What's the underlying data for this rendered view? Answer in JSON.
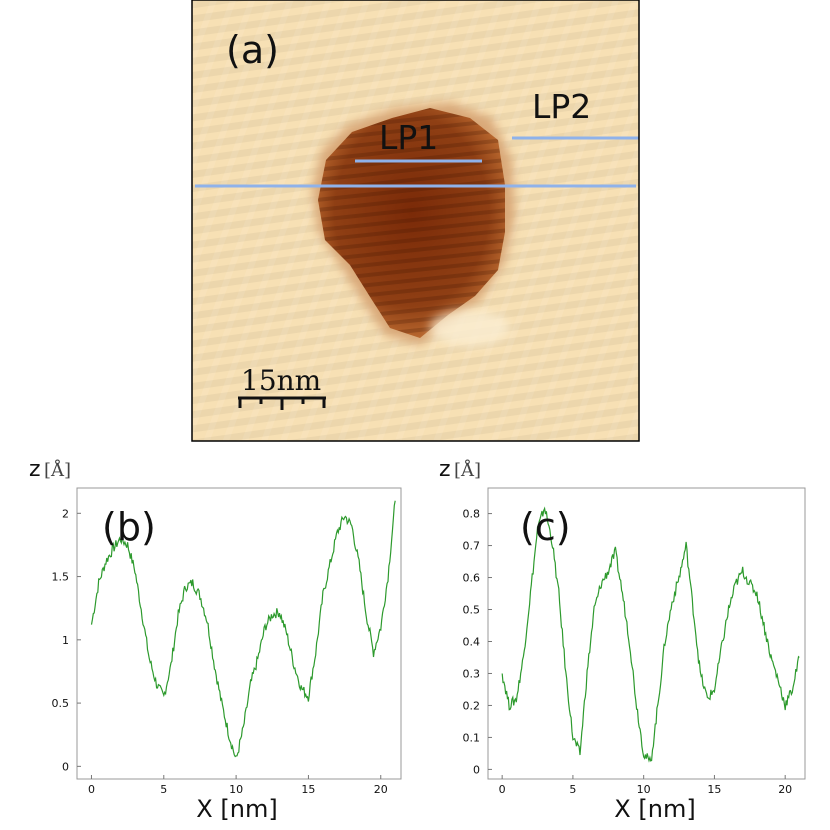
{
  "panel_a": {
    "label": "(a)",
    "line_labels": [
      "LP1",
      "LP2"
    ],
    "scale_bar_label": "15nm",
    "colors": {
      "line": "#8fb2ea",
      "dark": "#7a2a08",
      "light": "#f7e0b4"
    }
  },
  "chart_data": [
    {
      "type": "line",
      "panel_label": "(b)",
      "ylabel_var": "z",
      "ylabel_unit": "[Å]",
      "xlabel": "X [nm]",
      "xlim": [
        -1,
        21.4
      ],
      "ylim": [
        -0.1,
        2.2
      ],
      "xticks": [
        0,
        5,
        10,
        15,
        20
      ],
      "yticks": [
        0,
        0.5,
        1,
        1.5,
        2
      ],
      "ytick_labels": [
        "0",
        "0.5",
        "1",
        "1.5",
        "2"
      ],
      "color": "#2d9a2d",
      "series": [
        {
          "name": "LP1",
          "x": [
            0,
            0.5,
            1,
            1.5,
            2,
            2.5,
            3,
            3.5,
            4,
            4.5,
            5,
            5.5,
            6,
            6.5,
            7,
            7.5,
            8,
            8.5,
            9,
            9.5,
            10,
            10.5,
            11,
            11.5,
            12,
            12.5,
            13,
            13.5,
            14,
            14.5,
            15,
            15.5,
            16,
            16.5,
            17,
            17.5,
            18,
            18.5,
            19,
            19.5,
            20,
            20.5,
            21
          ],
          "y": [
            1.12,
            1.45,
            1.62,
            1.72,
            1.8,
            1.75,
            1.55,
            1.2,
            0.85,
            0.65,
            0.55,
            0.8,
            1.2,
            1.42,
            1.45,
            1.35,
            1.15,
            0.8,
            0.5,
            0.25,
            0.05,
            0.3,
            0.65,
            0.85,
            1.1,
            1.2,
            1.22,
            1.05,
            0.8,
            0.62,
            0.55,
            0.9,
            1.35,
            1.6,
            1.85,
            1.98,
            1.9,
            1.6,
            1.2,
            0.9,
            1.1,
            1.5,
            2.1
          ]
        }
      ]
    },
    {
      "type": "line",
      "panel_label": "(c)",
      "ylabel_var": "z",
      "ylabel_unit": "[Å]",
      "xlabel": "X [nm]",
      "xlim": [
        -1,
        21.4
      ],
      "ylim": [
        -0.03,
        0.88
      ],
      "xticks": [
        0,
        5,
        10,
        15,
        20
      ],
      "yticks": [
        0,
        0.1,
        0.2,
        0.3,
        0.4,
        0.5,
        0.6,
        0.7,
        0.8
      ],
      "ytick_labels": [
        "0",
        "0.1",
        "0.2",
        "0.3",
        "0.4",
        "0.5",
        "0.6",
        "0.7",
        "0.8"
      ],
      "color": "#2d9a2d",
      "series": [
        {
          "name": "LP2",
          "x": [
            0,
            0.5,
            1,
            1.5,
            2,
            2.5,
            3,
            3.5,
            4,
            4.5,
            5,
            5.5,
            6,
            6.5,
            7,
            7.5,
            8,
            8.5,
            9,
            9.5,
            10,
            10.5,
            11,
            11.5,
            12,
            12.5,
            13,
            13.5,
            14,
            14.5,
            15,
            15.5,
            16,
            16.5,
            17,
            17.5,
            18,
            18.5,
            19,
            19.5,
            20,
            20.5,
            21
          ],
          "y": [
            0.3,
            0.2,
            0.22,
            0.35,
            0.55,
            0.75,
            0.82,
            0.72,
            0.55,
            0.3,
            0.1,
            0.05,
            0.3,
            0.5,
            0.58,
            0.62,
            0.68,
            0.55,
            0.4,
            0.2,
            0.05,
            0.02,
            0.2,
            0.4,
            0.52,
            0.6,
            0.7,
            0.5,
            0.3,
            0.22,
            0.25,
            0.38,
            0.5,
            0.58,
            0.62,
            0.58,
            0.55,
            0.45,
            0.35,
            0.28,
            0.2,
            0.25,
            0.35
          ]
        }
      ]
    }
  ]
}
